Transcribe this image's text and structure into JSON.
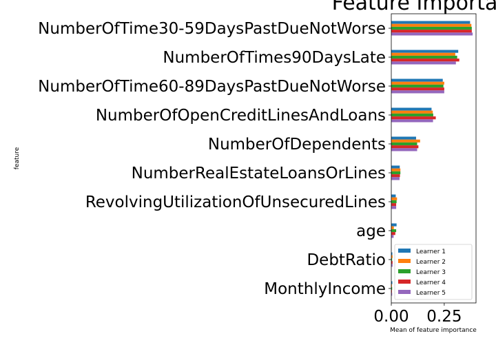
{
  "chart_data": {
    "type": "bar",
    "orientation": "horizontal",
    "title": "Feature Importance",
    "xlabel": "Mean of feature importance",
    "ylabel": "feature",
    "xlim": [
      0,
      0.4
    ],
    "xticks": [
      0.0,
      0.25
    ],
    "xtick_labels": [
      "0.00",
      "0.25"
    ],
    "grid": false,
    "legend_position": "lower-right",
    "categories": [
      "NumberOfTime30-59DaysPastDueNotWorse",
      "NumberOfTimes90DaysLate",
      "NumberOfTime60-89DaysPastDueNotWorse",
      "NumberOfOpenCreditLinesAndLoans",
      "NumberOfDependents",
      "NumberRealEstateLoansOrLines",
      "RevolvingUtilizationOfUnsecuredLines",
      "age",
      "DebtRatio",
      "MonthlyIncome"
    ],
    "series": [
      {
        "name": "Learner 1",
        "color": "#1f77b4",
        "values": [
          0.372,
          0.316,
          0.243,
          0.19,
          0.117,
          0.04,
          0.021,
          0.025,
          0.005,
          0.005
        ]
      },
      {
        "name": "Learner 2",
        "color": "#ff7f0e",
        "values": [
          0.378,
          0.302,
          0.25,
          0.196,
          0.136,
          0.043,
          0.027,
          0.012,
          0.006,
          0.003
        ]
      },
      {
        "name": "Learner 3",
        "color": "#2ca02c",
        "values": [
          0.38,
          0.311,
          0.246,
          0.198,
          0.122,
          0.043,
          0.025,
          0.023,
          0.004,
          0.004
        ]
      },
      {
        "name": "Learner 4",
        "color": "#d62728",
        "values": [
          0.38,
          0.321,
          0.25,
          0.21,
          0.128,
          0.041,
          0.023,
          0.019,
          0.006,
          0.003
        ]
      },
      {
        "name": "Learner 5",
        "color": "#9467bd",
        "values": [
          0.384,
          0.305,
          0.25,
          0.197,
          0.122,
          0.039,
          0.023,
          0.011,
          0.006,
          0.004
        ]
      }
    ]
  }
}
